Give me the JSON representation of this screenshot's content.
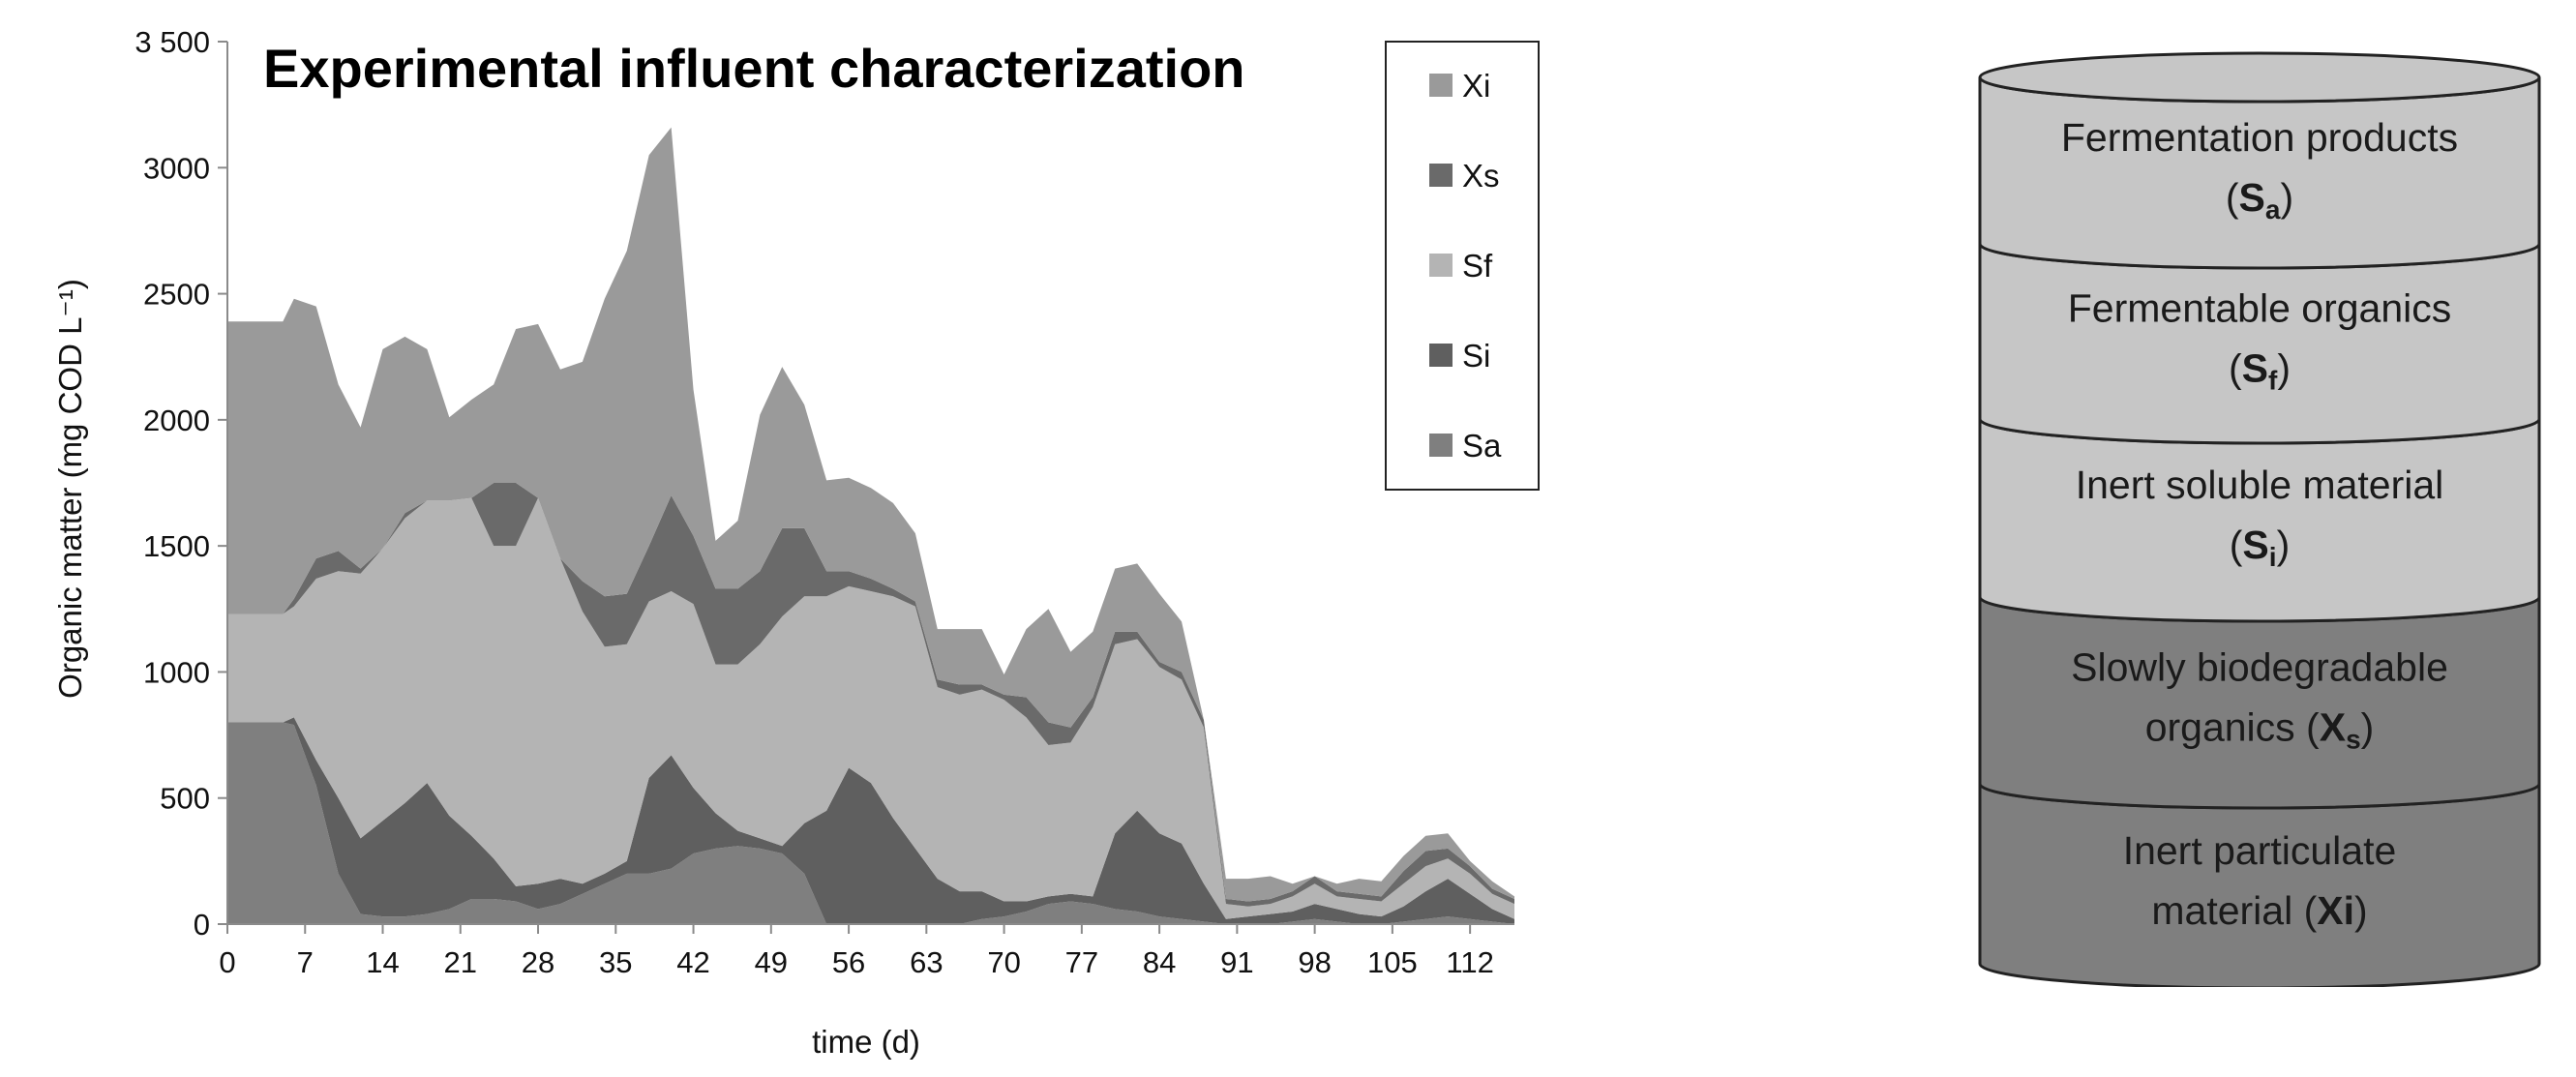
{
  "chart_data": {
    "type": "area",
    "stacked": true,
    "title": "Experimental influent characterization",
    "xlabel": "time (d)",
    "ylabel": "Organic matter (mg COD L⁻¹)",
    "xlim": [
      0,
      116
    ],
    "ylim": [
      0,
      3500
    ],
    "xticks": [
      0,
      7,
      14,
      21,
      28,
      35,
      42,
      49,
      56,
      63,
      70,
      77,
      84,
      91,
      98,
      105,
      112
    ],
    "yticks": [
      0,
      500,
      1000,
      1500,
      2000,
      2500,
      3000,
      3500
    ],
    "ytick_labels": [
      "0",
      "500",
      "1000",
      "1500",
      "2000",
      "2500",
      "3000",
      "3 500"
    ],
    "legend_position": "top-right",
    "x": [
      0,
      5,
      6,
      8,
      10,
      12,
      14,
      16,
      18,
      20,
      22,
      24,
      26,
      28,
      30,
      32,
      34,
      36,
      38,
      40,
      42,
      44,
      46,
      48,
      50,
      52,
      54,
      56,
      58,
      60,
      62,
      64,
      66,
      68,
      70,
      72,
      74,
      76,
      78,
      80,
      82,
      84,
      86,
      88,
      90,
      92,
      94,
      96,
      98,
      100,
      102,
      104,
      106,
      108,
      110,
      112,
      114,
      116
    ],
    "series": [
      {
        "name": "Sa",
        "color": "#7f7f7f",
        "values": [
          800,
          800,
          790,
          550,
          200,
          40,
          30,
          30,
          40,
          60,
          100,
          100,
          90,
          60,
          80,
          120,
          160,
          200,
          200,
          220,
          280,
          300,
          310,
          300,
          280,
          200,
          0,
          0,
          0,
          0,
          0,
          0,
          0,
          20,
          30,
          50,
          80,
          90,
          80,
          60,
          50,
          30,
          20,
          10,
          0,
          0,
          0,
          10,
          20,
          10,
          0,
          0,
          10,
          20,
          30,
          20,
          10,
          0
        ]
      },
      {
        "name": "Si",
        "color": "#5f5f5f",
        "values": [
          0,
          0,
          30,
          100,
          300,
          300,
          380,
          450,
          520,
          370,
          250,
          160,
          60,
          100,
          100,
          40,
          40,
          50,
          380,
          450,
          260,
          140,
          60,
          40,
          30,
          200,
          450,
          620,
          560,
          420,
          300,
          180,
          130,
          110,
          60,
          40,
          30,
          30,
          30,
          300,
          400,
          330,
          300,
          150,
          20,
          30,
          40,
          40,
          60,
          50,
          40,
          30,
          60,
          110,
          150,
          100,
          50,
          20
        ]
      },
      {
        "name": "Sf",
        "color": "#b4b4b4",
        "values": [
          430,
          430,
          440,
          720,
          900,
          1050,
          1080,
          1130,
          1120,
          1250,
          1340,
          1240,
          1350,
          1530,
          1270,
          1080,
          900,
          860,
          700,
          650,
          730,
          590,
          660,
          770,
          910,
          900,
          850,
          720,
          760,
          880,
          960,
          760,
          780,
          800,
          800,
          730,
          600,
          600,
          750,
          750,
          680,
          660,
          650,
          620,
          60,
          40,
          40,
          60,
          80,
          50,
          60,
          60,
          90,
          100,
          80,
          80,
          60,
          60
        ]
      },
      {
        "name": "Xs",
        "color": "#6a6a6a",
        "values": [
          0,
          0,
          30,
          80,
          80,
          20,
          0,
          20,
          0,
          0,
          0,
          250,
          250,
          0,
          0,
          120,
          200,
          200,
          220,
          380,
          270,
          300,
          300,
          290,
          350,
          270,
          100,
          60,
          50,
          30,
          20,
          30,
          40,
          20,
          20,
          80,
          90,
          60,
          40,
          50,
          30,
          20,
          30,
          30,
          20,
          20,
          20,
          20,
          30,
          20,
          20,
          20,
          50,
          60,
          40,
          30,
          20,
          20
        ]
      },
      {
        "name": "Xi",
        "color": "#9a9a9a",
        "values": [
          1160,
          1160,
          1190,
          1000,
          660,
          560,
          790,
          700,
          600,
          330,
          390,
          390,
          610,
          690,
          750,
          870,
          1180,
          1360,
          1550,
          1460,
          580,
          190,
          270,
          620,
          640,
          490,
          360,
          370,
          360,
          340,
          270,
          200,
          220,
          220,
          80,
          270,
          450,
          300,
          260,
          250,
          270,
          270,
          200,
          0,
          80,
          90,
          90,
          30,
          0,
          30,
          60,
          60,
          60,
          60,
          60,
          20,
          30,
          10
        ]
      }
    ]
  },
  "cylinder": {
    "layers": [
      {
        "line1": "Fermentation products",
        "paren_open": "(",
        "symbol": "S",
        "sub": "a",
        "paren_close": ")"
      },
      {
        "line1": "Fermentable organics",
        "paren_open": "(",
        "symbol": "S",
        "sub": "f",
        "paren_close": ")"
      },
      {
        "line1": "Inert soluble material",
        "paren_open": "(",
        "symbol": "S",
        "sub": "i",
        "paren_close": ")"
      },
      {
        "line1": "Slowly biodegradable",
        "line2": "organics (",
        "symbol": "X",
        "sub": "s",
        "paren_close": ")"
      },
      {
        "line1": "Inert particulate",
        "line2": "material (",
        "symbol": "Xi",
        "paren_close": ")"
      }
    ],
    "colors": {
      "light": "#c6c6c6",
      "dark": "#7f7f7f",
      "outline": "#222222"
    }
  }
}
